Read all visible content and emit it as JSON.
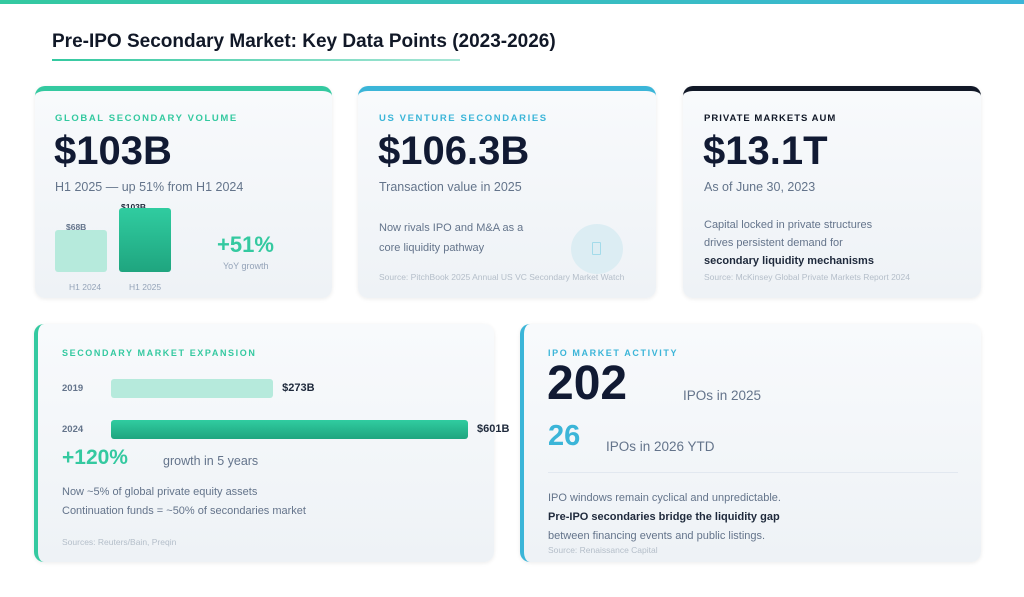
{
  "title": "Pre-IPO Secondary Market: Key Data Points (2023-2026)",
  "colors": {
    "teal": "#34c9a0",
    "blue": "#3bb5d8",
    "dark": "#111827"
  },
  "card1": {
    "label": "GLOBAL SECONDARY VOLUME",
    "value": "$103B",
    "sub": "H1 2025 — up 51% from H1 2024",
    "bars": [
      {
        "label": "H1 2024",
        "value_label": "$68B",
        "value": 68
      },
      {
        "label": "H1 2025",
        "value_label": "$103B",
        "value": 103
      }
    ],
    "growth": "+51%",
    "growth_label": "YoY growth"
  },
  "card2": {
    "label": "US VENTURE SECONDARIES",
    "value": "$106.3B",
    "sub": "Transaction value in 2025",
    "body": "Now rivals IPO and M&A as a core liquidity pathway",
    "icon": "phone-icon",
    "source": "Source: PitchBook 2025 Annual US VC Secondary Market Watch"
  },
  "card3": {
    "label": "PRIVATE MARKETS AUM",
    "value": "$13.1T",
    "sub": "As of June 30, 2023",
    "body": "Capital locked in private structures drives persistent demand for",
    "body_bold": "secondary liquidity mechanisms",
    "source": "Source: McKinsey Global Private Markets Report 2024"
  },
  "card4": {
    "label": "SECONDARY MARKET EXPANSION",
    "bars": [
      {
        "year": "2019",
        "value_label": "$273B",
        "value": 273
      },
      {
        "year": "2024",
        "value_label": "$601B",
        "value": 601
      }
    ],
    "growth": "+120%",
    "growth_label": "growth in 5 years",
    "line1": "Now ~5% of global private equity assets",
    "line2": "Continuation funds = ~50% of secondaries market",
    "source": "Sources: Reuters/Bain, Preqin"
  },
  "card5": {
    "label": "IPO MARKET ACTIVITY",
    "value": "202",
    "value_label": "IPOs in 2025",
    "value2": "26",
    "value2_label": "IPOs in 2026 YTD",
    "line1": "IPO windows remain cyclical and unpredictable.",
    "line2": "Pre-IPO secondaries bridge the liquidity gap",
    "line3": "between financing events and public listings.",
    "source": "Source: Renaissance Capital"
  }
}
